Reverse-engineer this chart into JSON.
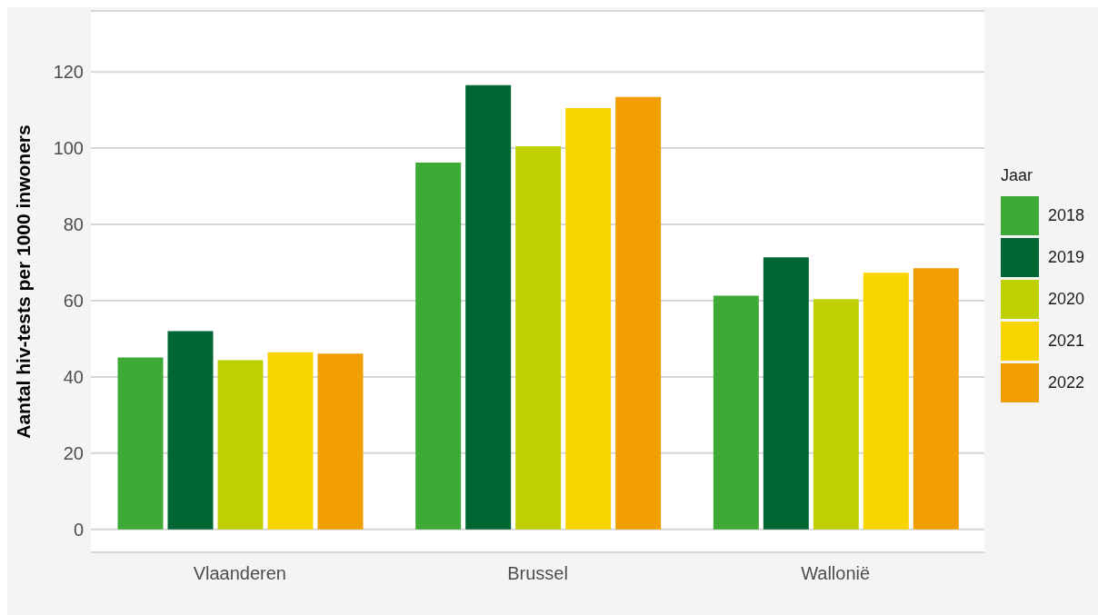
{
  "chart_data": {
    "type": "bar",
    "ylabel": "Aantal hiv-tests per 1000 inwoners",
    "legend_title": "Jaar",
    "categories": [
      "Vlaanderen",
      "Brussel",
      "Wallonië"
    ],
    "series": [
      {
        "name": "2018",
        "color": "#3caa35",
        "values": [
          45.1,
          96.2,
          61.3
        ]
      },
      {
        "name": "2019",
        "color": "#006633",
        "values": [
          52.0,
          116.5,
          71.4
        ]
      },
      {
        "name": "2020",
        "color": "#bed000",
        "values": [
          44.4,
          100.5,
          60.4
        ]
      },
      {
        "name": "2021",
        "color": "#f9d500",
        "values": [
          46.5,
          110.5,
          67.3
        ]
      },
      {
        "name": "2022",
        "color": "#f19f00",
        "values": [
          46.1,
          113.4,
          68.5
        ]
      }
    ],
    "ylim": [
      -6,
      136
    ],
    "yticks": [
      0,
      20,
      40,
      60,
      80,
      100,
      120
    ],
    "grid": "y",
    "legend": "right"
  }
}
